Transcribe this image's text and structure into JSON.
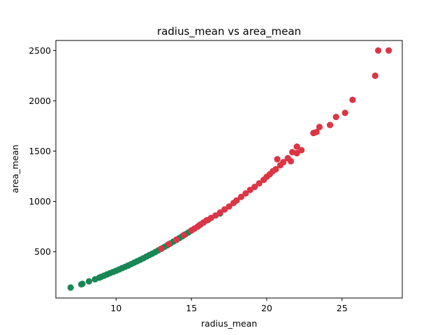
{
  "chart_data": {
    "type": "scatter",
    "title": "radius_mean vs area_mean",
    "xlabel": "radius_mean",
    "ylabel": "area_mean",
    "xlim": [
      6.0,
      29.0
    ],
    "ylim": [
      40,
      2600
    ],
    "x_ticks": [
      10,
      15,
      20,
      25
    ],
    "x_tick_labels": [
      "10",
      "15",
      "20",
      "25"
    ],
    "y_ticks": [
      500,
      1000,
      1500,
      2000,
      2500
    ],
    "y_tick_labels": [
      "500",
      "1000",
      "1500",
      "2000",
      "2500"
    ],
    "grid": false,
    "legend": "none",
    "colors": {
      "red": "#dc3545",
      "green": "#198754"
    },
    "series": [
      {
        "color": "#198754",
        "points": [
          [
            6.98,
            144
          ],
          [
            7.69,
            176
          ],
          [
            7.76,
            181
          ],
          [
            8.2,
            206
          ],
          [
            8.6,
            226
          ],
          [
            8.88,
            242
          ],
          [
            9.0,
            250
          ],
          [
            9.2,
            262
          ],
          [
            9.4,
            275
          ],
          [
            9.6,
            287
          ],
          [
            9.8,
            299
          ],
          [
            10.0,
            311
          ],
          [
            10.2,
            324
          ],
          [
            10.4,
            337
          ],
          [
            10.6,
            350
          ],
          [
            10.8,
            363
          ],
          [
            11.0,
            377
          ],
          [
            11.2,
            391
          ],
          [
            11.4,
            406
          ],
          [
            11.6,
            420
          ],
          [
            11.8,
            435
          ],
          [
            12.0,
            450
          ],
          [
            12.2,
            466
          ],
          [
            12.4,
            481
          ],
          [
            12.6,
            497
          ],
          [
            12.8,
            514
          ],
          [
            13.0,
            530
          ],
          [
            13.2,
            547
          ],
          [
            13.4,
            564
          ],
          [
            13.6,
            582
          ],
          [
            13.8,
            600
          ],
          [
            14.0,
            617
          ],
          [
            14.2,
            636
          ],
          [
            14.4,
            654
          ],
          [
            14.6,
            673
          ],
          [
            14.8,
            692
          ],
          [
            15.0,
            711
          ],
          [
            15.5,
            760
          ],
          [
            15.8,
            790
          ],
          [
            16.1,
            815
          ],
          [
            16.9,
            880
          ]
        ]
      },
      {
        "color": "#dc3545",
        "points": [
          [
            13.0,
            530
          ],
          [
            13.5,
            575
          ],
          [
            14.0,
            620
          ],
          [
            14.5,
            665
          ],
          [
            15.0,
            712
          ],
          [
            15.2,
            730
          ],
          [
            15.4,
            748
          ],
          [
            15.6,
            770
          ],
          [
            15.8,
            790
          ],
          [
            16.0,
            812
          ],
          [
            16.3,
            835
          ],
          [
            16.6,
            860
          ],
          [
            16.9,
            890
          ],
          [
            17.2,
            920
          ],
          [
            17.5,
            950
          ],
          [
            17.8,
            985
          ],
          [
            18.0,
            1010
          ],
          [
            18.3,
            1045
          ],
          [
            18.6,
            1080
          ],
          [
            18.9,
            1115
          ],
          [
            19.2,
            1145
          ],
          [
            19.5,
            1180
          ],
          [
            19.8,
            1215
          ],
          [
            20.0,
            1245
          ],
          [
            20.2,
            1270
          ],
          [
            20.4,
            1300
          ],
          [
            20.6,
            1320
          ],
          [
            20.9,
            1360
          ],
          [
            21.1,
            1390
          ],
          [
            21.4,
            1430
          ],
          [
            20.7,
            1420
          ],
          [
            21.6,
            1400
          ],
          [
            22.0,
            1480
          ],
          [
            22.3,
            1510
          ],
          [
            21.7,
            1490
          ],
          [
            22.0,
            1545
          ],
          [
            23.1,
            1680
          ],
          [
            23.3,
            1690
          ],
          [
            23.5,
            1740
          ],
          [
            24.2,
            1760
          ],
          [
            24.6,
            1840
          ],
          [
            25.2,
            1880
          ],
          [
            25.7,
            2010
          ],
          [
            27.2,
            2250
          ],
          [
            27.4,
            2500
          ],
          [
            28.1,
            2500
          ]
        ]
      }
    ]
  }
}
